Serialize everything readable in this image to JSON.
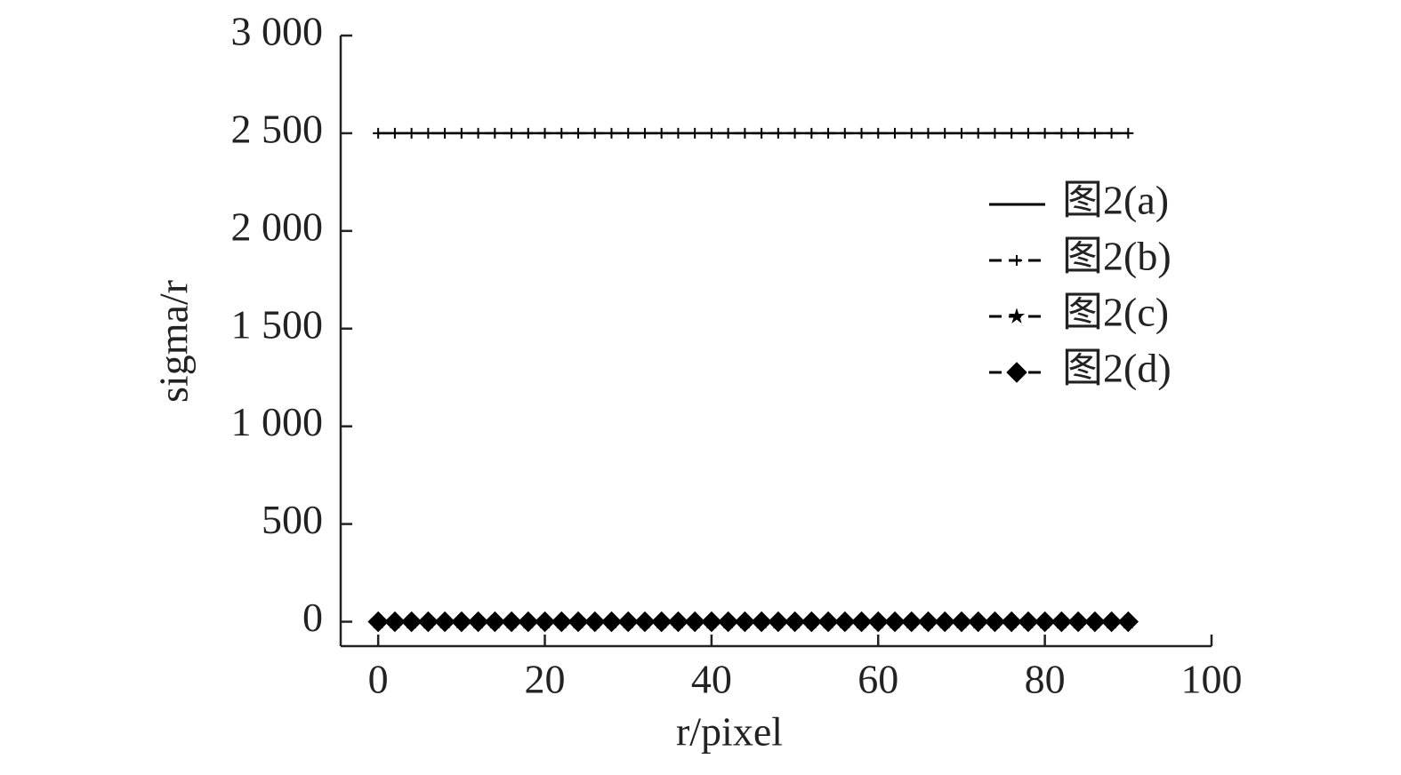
{
  "chart_data": {
    "type": "line",
    "xlabel": "r/pixel",
    "ylabel": "sigma/r",
    "x": [
      0,
      2,
      4,
      6,
      8,
      10,
      12,
      14,
      16,
      18,
      20,
      22,
      24,
      26,
      28,
      30,
      32,
      34,
      36,
      38,
      40,
      42,
      44,
      46,
      48,
      50,
      52,
      54,
      56,
      58,
      60,
      62,
      64,
      66,
      68,
      70,
      72,
      74,
      76,
      78,
      80,
      82,
      84,
      86,
      88,
      90
    ],
    "series": [
      {
        "name": "图2(a)",
        "color": "#000000",
        "marker": "none",
        "dash": "solid",
        "values": [
          2500,
          2500,
          2500,
          2500,
          2500,
          2500,
          2500,
          2500,
          2500,
          2500,
          2500,
          2500,
          2500,
          2500,
          2500,
          2500,
          2500,
          2500,
          2500,
          2500,
          2500,
          2500,
          2500,
          2500,
          2500,
          2500,
          2500,
          2500,
          2500,
          2500,
          2500,
          2500,
          2500,
          2500,
          2500,
          2500,
          2500,
          2500,
          2500,
          2500,
          2500,
          2500,
          2500,
          2500,
          2500,
          2500
        ]
      },
      {
        "name": "图2(b)",
        "color": "#000000",
        "marker": "plus",
        "dash": "dashed",
        "values": [
          2500,
          2500,
          2500,
          2500,
          2500,
          2500,
          2500,
          2500,
          2500,
          2500,
          2500,
          2500,
          2500,
          2500,
          2500,
          2500,
          2500,
          2500,
          2500,
          2500,
          2500,
          2500,
          2500,
          2500,
          2500,
          2500,
          2500,
          2500,
          2500,
          2500,
          2500,
          2500,
          2500,
          2500,
          2500,
          2500,
          2500,
          2500,
          2500,
          2500,
          2500,
          2500,
          2500,
          2500,
          2500,
          2500
        ]
      },
      {
        "name": "图2(c)",
        "color": "#000000",
        "marker": "star",
        "dash": "dashed",
        "values": [
          0,
          0,
          0,
          0,
          0,
          0,
          0,
          0,
          0,
          0,
          0,
          0,
          0,
          0,
          0,
          0,
          0,
          0,
          0,
          0,
          0,
          0,
          0,
          0,
          0,
          0,
          0,
          0,
          0,
          0,
          0,
          0,
          0,
          0,
          0,
          0,
          0,
          0,
          0,
          0,
          0,
          0,
          0,
          0,
          0,
          0
        ]
      },
      {
        "name": "图2(d)",
        "color": "#000000",
        "marker": "diamond",
        "dash": "dashed",
        "values": [
          0,
          0,
          0,
          0,
          0,
          0,
          0,
          0,
          0,
          0,
          0,
          0,
          0,
          0,
          0,
          0,
          0,
          0,
          0,
          0,
          0,
          0,
          0,
          0,
          0,
          0,
          0,
          0,
          0,
          0,
          0,
          0,
          0,
          0,
          0,
          0,
          0,
          0,
          0,
          0,
          0,
          0,
          0,
          0,
          0,
          0
        ]
      }
    ],
    "xlim": [
      -4.5,
      100
    ],
    "xticks": [
      0,
      20,
      40,
      60,
      80,
      100
    ],
    "ylim": [
      -125,
      3000
    ],
    "yticks": [
      0,
      500,
      {
        "value": 1000,
        "label": "1 000"
      },
      {
        "value": 1500,
        "label": "1 500"
      },
      {
        "value": 2000,
        "label": "2 000"
      },
      {
        "value": 2500,
        "label": "2 500"
      },
      {
        "value": 3000,
        "label": "3 000"
      }
    ],
    "grid": false,
    "legend": "upper right"
  }
}
